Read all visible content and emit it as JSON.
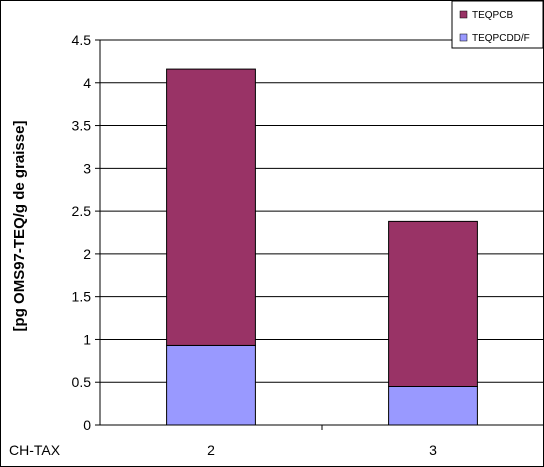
{
  "chart_data": {
    "type": "bar",
    "stacked": true,
    "categories": [
      "2",
      "3"
    ],
    "category_axis_label": "CH-TAX",
    "series": [
      {
        "name": "TEQPCDD/F",
        "values": [
          0.93,
          0.45
        ],
        "color": "#9999ff"
      },
      {
        "name": "TEQPCB",
        "values": [
          3.23,
          1.93
        ],
        "color": "#993366"
      }
    ],
    "ylabel": "[pg OMS97-TEQ/g de graisse]",
    "ylim": [
      0,
      4.5
    ],
    "yticks": [
      "0",
      "0.5",
      "1",
      "1.5",
      "2",
      "2.5",
      "3",
      "3.5",
      "4",
      "4.5"
    ],
    "grid": true,
    "legend": {
      "position": "top-right",
      "order": [
        "TEQPCB",
        "TEQPCDD/F"
      ]
    },
    "background": "#ffffff",
    "gridline_color": "#000000"
  }
}
